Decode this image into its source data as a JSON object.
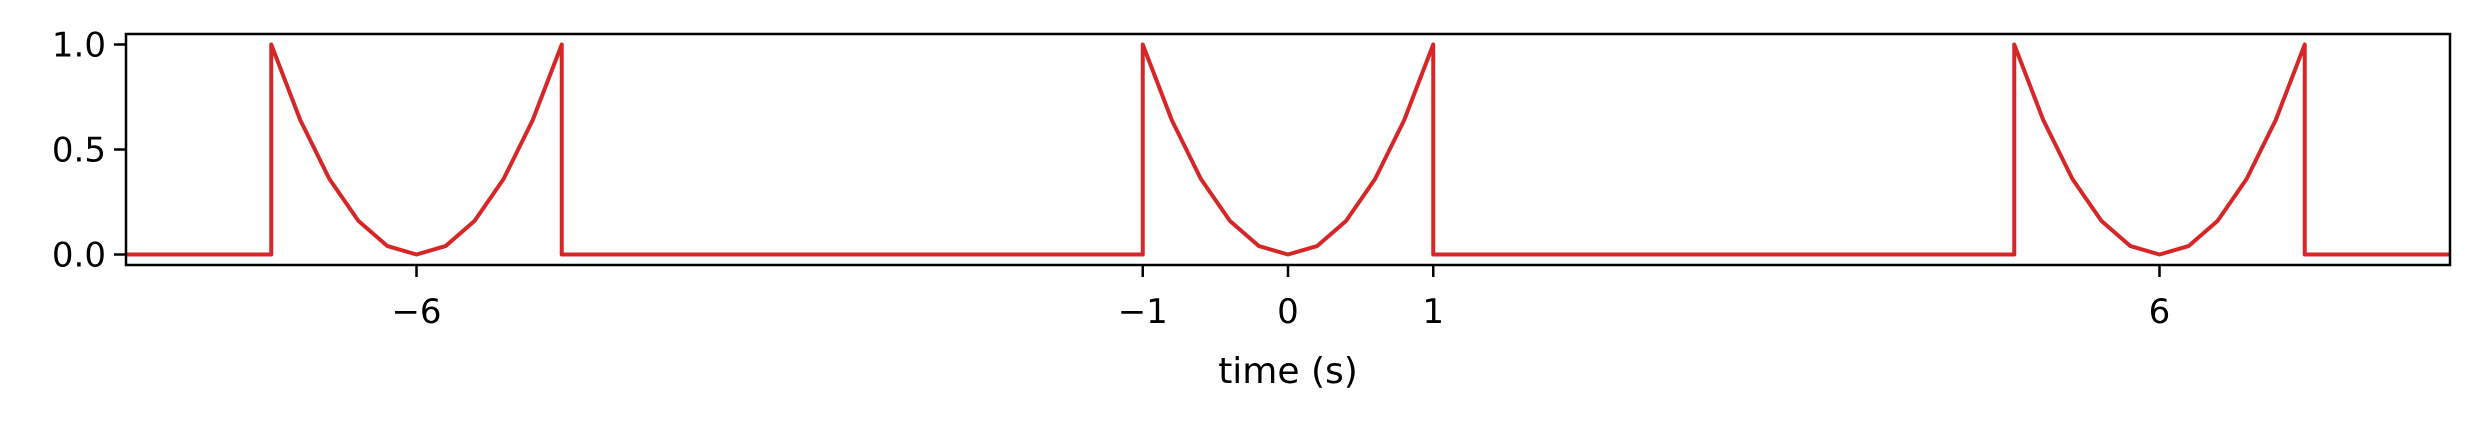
{
  "chart_data": {
    "type": "line",
    "title": "",
    "xlabel": "time (s)",
    "ylabel": "",
    "xlim": [
      -8,
      8
    ],
    "ylim": [
      -0.05,
      1.05
    ],
    "grid": false,
    "xticks": [
      {
        "value": -6,
        "label": "−6"
      },
      {
        "value": -1,
        "label": "−1"
      },
      {
        "value": 0,
        "label": "0"
      },
      {
        "value": 1,
        "label": "1"
      },
      {
        "value": 6,
        "label": "6"
      }
    ],
    "yticks": [
      {
        "value": 0,
        "label": "0.0"
      },
      {
        "value": 0.5,
        "label": "0.5"
      },
      {
        "value": 1,
        "label": "1.0"
      }
    ],
    "series": [
      {
        "color": "#d62728",
        "x": [
          -8,
          -7.0,
          -7.0,
          -6.8,
          -6.6,
          -6.4,
          -6.2,
          -6.0,
          -5.8,
          -5.6,
          -5.4,
          -5.2,
          -5.0,
          -5.0,
          -1.0,
          -1.0,
          -0.8,
          -0.6,
          -0.4,
          -0.2,
          0.0,
          0.2,
          0.4,
          0.6,
          0.8,
          1.0,
          1.0,
          5.0,
          5.0,
          5.2,
          5.4,
          5.6,
          5.8,
          6.0,
          6.2,
          6.4,
          6.6,
          6.8,
          7.0,
          7.0,
          8
        ],
        "y": [
          0,
          0,
          1.0,
          0.64,
          0.36,
          0.16,
          0.04,
          0.0,
          0.04,
          0.16,
          0.36,
          0.64,
          1.0,
          0,
          0,
          1.0,
          0.64,
          0.36,
          0.16,
          0.04,
          0.0,
          0.04,
          0.16,
          0.36,
          0.64,
          1.0,
          0,
          0,
          1.0,
          0.64,
          0.36,
          0.16,
          0.04,
          0.0,
          0.04,
          0.16,
          0.36,
          0.64,
          1.0,
          0,
          0
        ]
      }
    ]
  }
}
